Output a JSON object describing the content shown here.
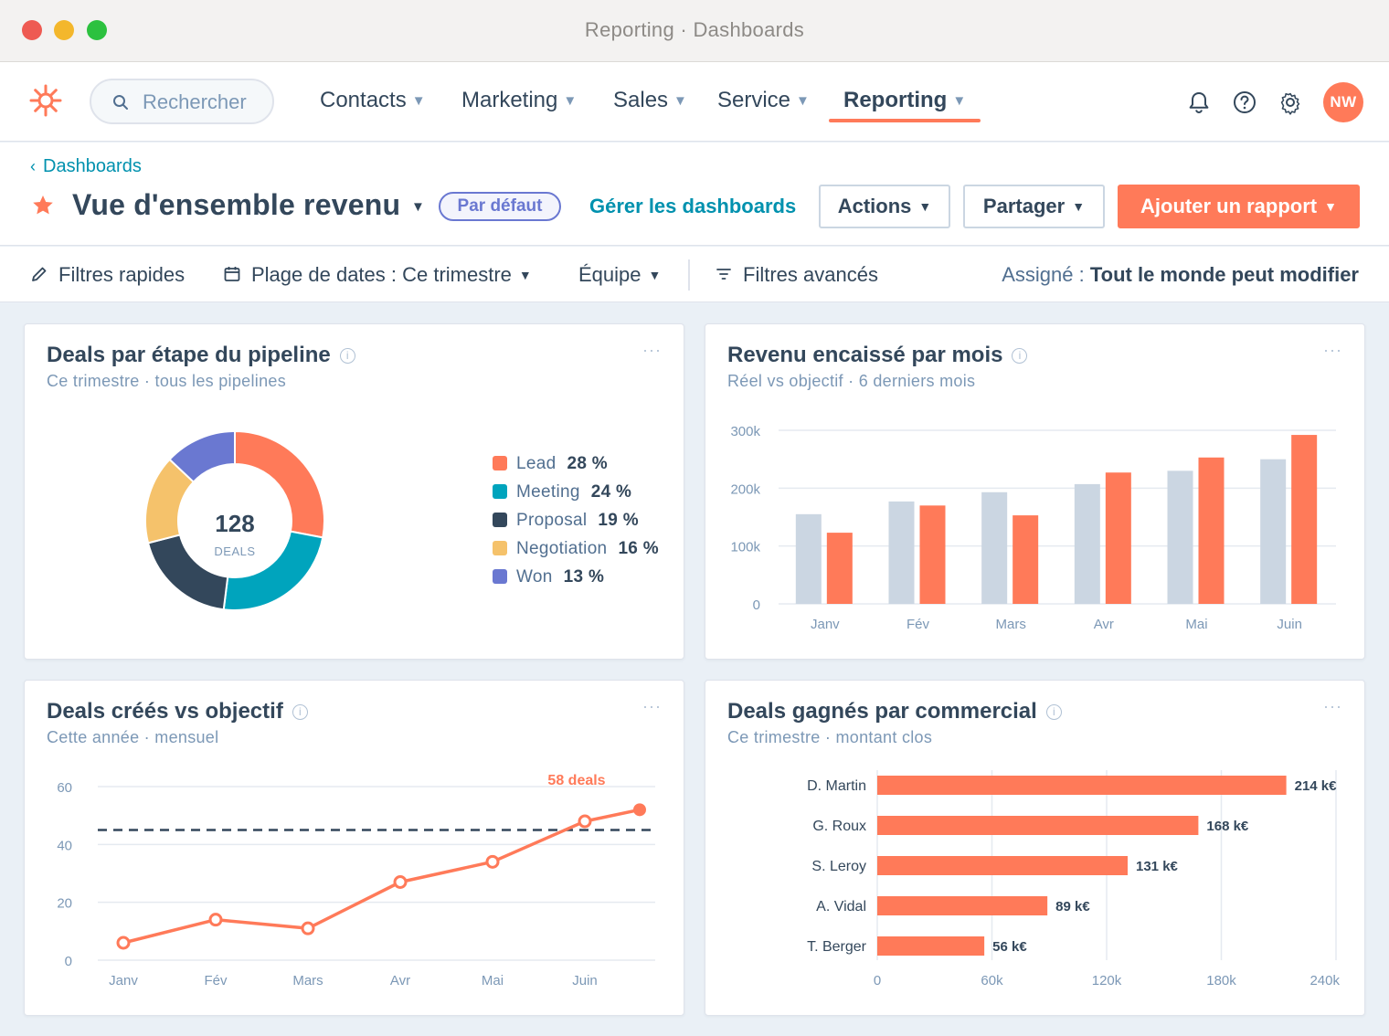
{
  "window": {
    "title": "Reporting · Dashboards"
  },
  "nav": {
    "search_placeholder": "Rechercher",
    "items": [
      {
        "label": "Contacts"
      },
      {
        "label": "Marketing"
      },
      {
        "label": "Sales"
      },
      {
        "label": "Service"
      },
      {
        "label": "Reporting",
        "active": true
      }
    ],
    "avatar_initials": "NW"
  },
  "header": {
    "back_label": "Dashboards",
    "title": "Vue d'ensemble revenu",
    "badge": "Par défaut",
    "manage_link": "Gérer les dashboards",
    "actions_label": "Actions",
    "share_label": "Partager",
    "add_report_label": "Ajouter un rapport"
  },
  "filters": {
    "quick": "Filtres rapides",
    "date_range": "Plage de dates : Ce trimestre",
    "team": "Équipe",
    "advanced": "Filtres avancés",
    "assigned_label": "Assigné :",
    "assigned_value": "Tout le monde peut modifier"
  },
  "colors": {
    "accent": "#ff7a59",
    "teal": "#00a4bd",
    "navy": "#33475b",
    "yellow": "#f5c26b",
    "purple": "#6a78d1",
    "gray_bar": "#cbd6e2",
    "link": "#0091ae"
  },
  "cards": {
    "pipeline": {
      "title": "Deals par étape du pipeline",
      "subtitle": "Ce trimestre · tous les pipelines",
      "center_value": "128",
      "center_label": "DEALS"
    },
    "revenue": {
      "title": "Revenu encaissé par mois",
      "subtitle": "Réel vs objectif · 6 derniers mois"
    },
    "created": {
      "title": "Deals créés vs objectif",
      "subtitle": "Cette année · mensuel",
      "annotation": "58 deals"
    },
    "won": {
      "title": "Deals gagnés par commercial",
      "subtitle": "Ce trimestre · montant clos"
    }
  },
  "chart_data": [
    {
      "type": "pie",
      "title": "Deals par étape du pipeline",
      "categories": [
        "Lead",
        "Meeting",
        "Proposal",
        "Negotiation",
        "Won"
      ],
      "values": [
        28,
        24,
        19,
        16,
        13
      ],
      "labels": [
        "28 %",
        "24 %",
        "19 %",
        "16 %",
        "13 %"
      ],
      "colors": [
        "#ff7a59",
        "#00a4bd",
        "#33475b",
        "#f5c26b",
        "#6a78d1"
      ]
    },
    {
      "type": "bar",
      "title": "Revenu encaissé par mois",
      "categories": [
        "Janv",
        "Fév",
        "Mars",
        "Avr",
        "Mai",
        "Juin"
      ],
      "series": [
        {
          "values": [
            155,
            177,
            193,
            207,
            230,
            250
          ],
          "color": "#cbd6e2"
        },
        {
          "values": [
            123,
            170,
            153,
            227,
            253,
            292
          ],
          "color": "#ff7a59"
        }
      ],
      "ylim": [
        0,
        300
      ],
      "yticks": [
        0,
        100,
        200,
        300
      ],
      "ytick_labels": [
        "0",
        "100k",
        "200k",
        "300k"
      ]
    },
    {
      "type": "line",
      "title": "Deals créés vs objectif",
      "categories": [
        "Janv",
        "Fév",
        "Mars",
        "Avr",
        "Mai",
        "Juin"
      ],
      "extra_point": 52,
      "values": [
        6,
        14,
        11,
        27,
        34,
        48
      ],
      "target": 45,
      "annotation": "58 deals",
      "ylim": [
        0,
        60
      ],
      "yticks": [
        0,
        20,
        40,
        60
      ],
      "color": "#ff7a59"
    },
    {
      "type": "bar",
      "orientation": "horizontal",
      "title": "Deals gagnés par commercial",
      "categories": [
        "D. Martin",
        "G. Roux",
        "S. Leroy",
        "A. Vidal",
        "T. Berger"
      ],
      "values": [
        214,
        168,
        131,
        89,
        56
      ],
      "labels": [
        "214 k€",
        "168 k€",
        "131 k€",
        "89 k€",
        "56 k€"
      ],
      "xlim": [
        0,
        240
      ],
      "xticks": [
        0,
        60,
        120,
        180,
        240
      ],
      "xtick_labels": [
        "0",
        "60k",
        "120k",
        "180k",
        "240k"
      ],
      "color": "#ff7a59"
    }
  ]
}
